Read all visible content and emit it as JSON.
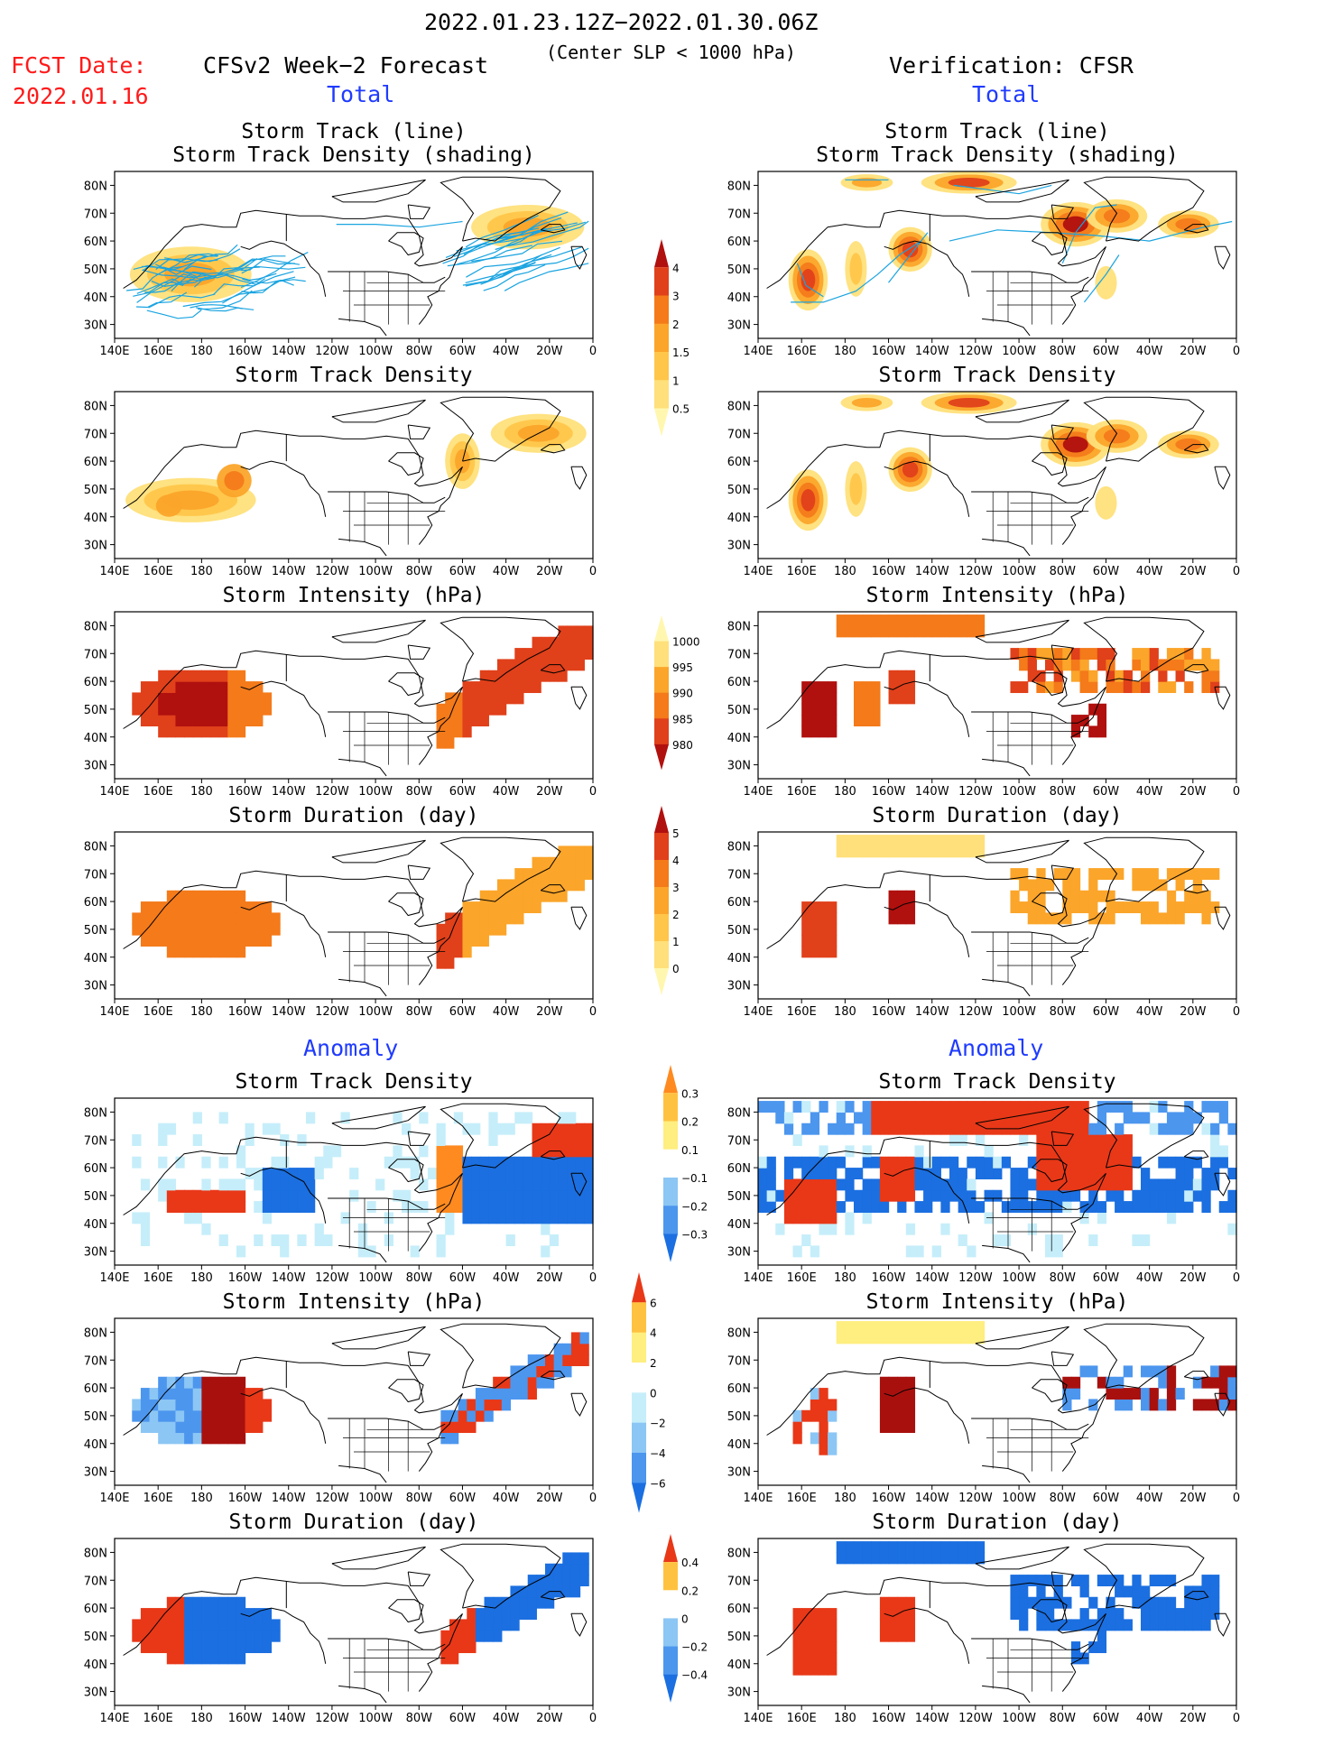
{
  "header": {
    "date_range": "2022.01.23.12Z−2022.01.30.06Z",
    "center_slp": "(Center SLP < 1000 hPa)",
    "fcst_label": "FCST Date:",
    "fcst_date": "2022.01.16",
    "left_title": "CFSv2 Week−2 Forecast",
    "right_title": "Verification: CFSR",
    "total_label": "Total",
    "anomaly_label": "Anomaly"
  },
  "panel_titles": {
    "track_line": "Storm Track (line)",
    "track_shading": "Storm Track Density (shading)",
    "density": "Storm Track Density",
    "intensity": "Storm Intensity (hPa)",
    "duration": "Storm Duration (day)"
  },
  "axes": {
    "lat_labels": [
      "80N",
      "70N",
      "60N",
      "50N",
      "40N",
      "30N"
    ],
    "lon_labels": [
      "140E",
      "160E",
      "180",
      "160W",
      "140W",
      "120W",
      "100W",
      "80W",
      "60W",
      "40W",
      "20W",
      "0"
    ]
  },
  "colorbars": {
    "density_total": [
      "4",
      "3",
      "2",
      "1.5",
      "1",
      "0.5"
    ],
    "intensity_total": [
      "1000",
      "995",
      "990",
      "985",
      "980"
    ],
    "duration_total": [
      "5",
      "4",
      "3",
      "2",
      "1",
      "0"
    ],
    "density_anom": [
      "0.3",
      "0.2",
      "0.1",
      "−0.1",
      "−0.2",
      "−0.3"
    ],
    "intensity_anom": [
      "6",
      "4",
      "2",
      "0",
      "−2",
      "−4",
      "−6"
    ],
    "duration_anom": [
      "0.4",
      "0.2",
      "0",
      "−0.2",
      "−0.4"
    ]
  },
  "colors": {
    "total_scale": [
      "#fff7b0",
      "#ffe07a",
      "#ffc64a",
      "#fba52a",
      "#f47a1a",
      "#e0401a",
      "#b0100e"
    ],
    "anom_scale": [
      "#1b6fe0",
      "#4c96ee",
      "#8cc6f4",
      "#c6eefa",
      "#ffffff",
      "#ffee80",
      "#ffc240",
      "#ff8a20",
      "#e83818"
    ],
    "track_line": "#1aa4e0",
    "red_text": "#ff1a1a",
    "blue_text": "#1f3bff"
  }
}
